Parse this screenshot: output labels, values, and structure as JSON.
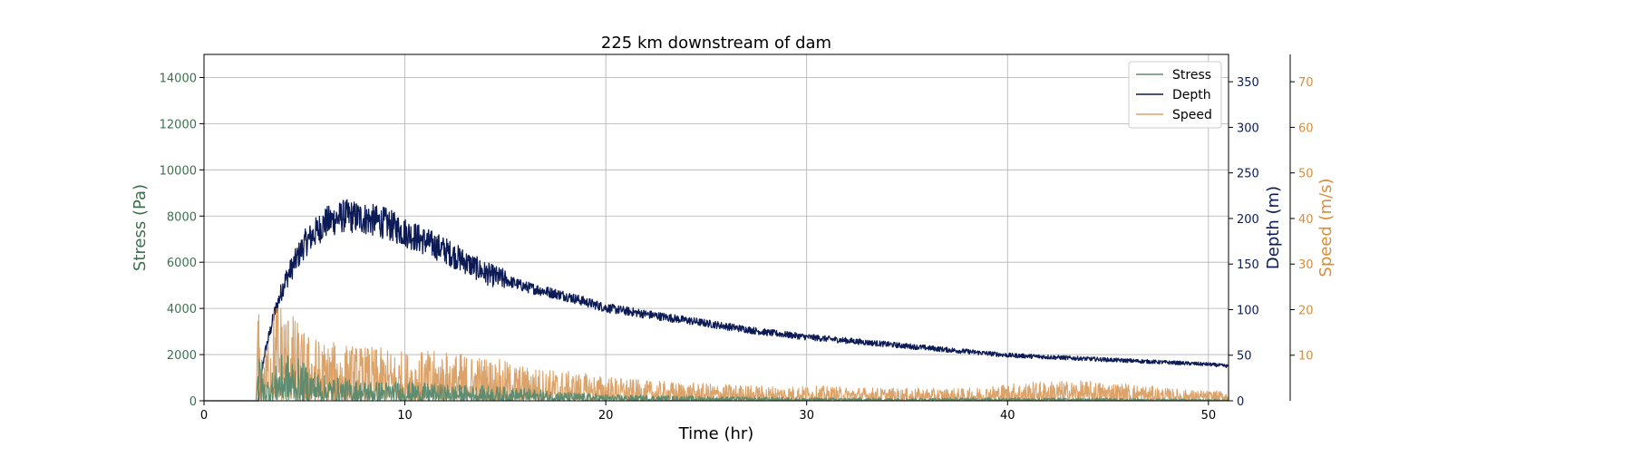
{
  "chart_data": {
    "type": "line",
    "title": "225 km downstream of dam",
    "xlabel": "Time (hr)",
    "xlim": [
      0,
      51
    ],
    "xticks": [
      0,
      10,
      20,
      30,
      40,
      50
    ],
    "grid": true,
    "legend_position": "top-right",
    "axes": {
      "stress": {
        "label": "Stress (Pa)",
        "color": "#3e7050",
        "ylim": [
          0,
          15000
        ],
        "ticks": [
          0,
          2000,
          4000,
          6000,
          8000,
          10000,
          12000,
          14000
        ]
      },
      "depth": {
        "label": "Depth (m)",
        "color": "#0c1b55",
        "ylim": [
          0,
          380
        ],
        "ticks": [
          0,
          50,
          100,
          150,
          200,
          250,
          300,
          350
        ]
      },
      "speed": {
        "label": "Speed (m/s)",
        "color": "#d88e39",
        "ylim": [
          0,
          76
        ],
        "ticks": [
          10,
          20,
          30,
          40,
          50,
          60,
          70
        ]
      }
    },
    "series": [
      {
        "name": "Stress",
        "axis": "stress",
        "color": "#5e8c70",
        "envelope": {
          "x": [
            0,
            2.6,
            2.8,
            3.0,
            3.5,
            4.0,
            5,
            6,
            8,
            10,
            12,
            14,
            16,
            18,
            20,
            25,
            30,
            35,
            40,
            45,
            50,
            51
          ],
          "y": [
            0,
            0,
            2400,
            800,
            1300,
            2000,
            1500,
            1000,
            800,
            750,
            650,
            600,
            500,
            350,
            250,
            180,
            120,
            110,
            130,
            110,
            60,
            50
          ]
        }
      },
      {
        "name": "Depth",
        "axis": "depth",
        "color": "#0c1b55",
        "envelope": {
          "x": [
            0,
            2.7,
            3.0,
            3.5,
            4.0,
            5,
            6,
            7,
            8,
            9,
            10,
            12,
            14,
            16,
            18,
            20,
            22,
            25,
            28,
            30,
            35,
            40,
            45,
            50,
            51
          ],
          "y": [
            0,
            0,
            50,
            95,
            130,
            172,
            195,
            203,
            200,
            195,
            185,
            165,
            140,
            125,
            115,
            102,
            95,
            85,
            75,
            70,
            60,
            50,
            45,
            40,
            38
          ]
        }
      },
      {
        "name": "Speed",
        "axis": "speed",
        "color": "#dba369",
        "envelope": {
          "x": [
            0,
            2.6,
            2.7,
            2.9,
            3.2,
            3.6,
            4.0,
            5,
            6,
            8,
            10,
            12,
            14,
            16,
            18,
            20,
            22,
            25,
            28,
            30,
            35,
            38,
            40,
            42,
            44,
            46,
            48,
            50,
            51
          ],
          "y": [
            0,
            0,
            20,
            4,
            15,
            22,
            20,
            14,
            12,
            11,
            10,
            10,
            9,
            7,
            6,
            5,
            4,
            3.5,
            3,
            3,
            2.5,
            2.5,
            3.5,
            4,
            4,
            3.5,
            2.5,
            2,
            2
          ]
        }
      }
    ]
  }
}
